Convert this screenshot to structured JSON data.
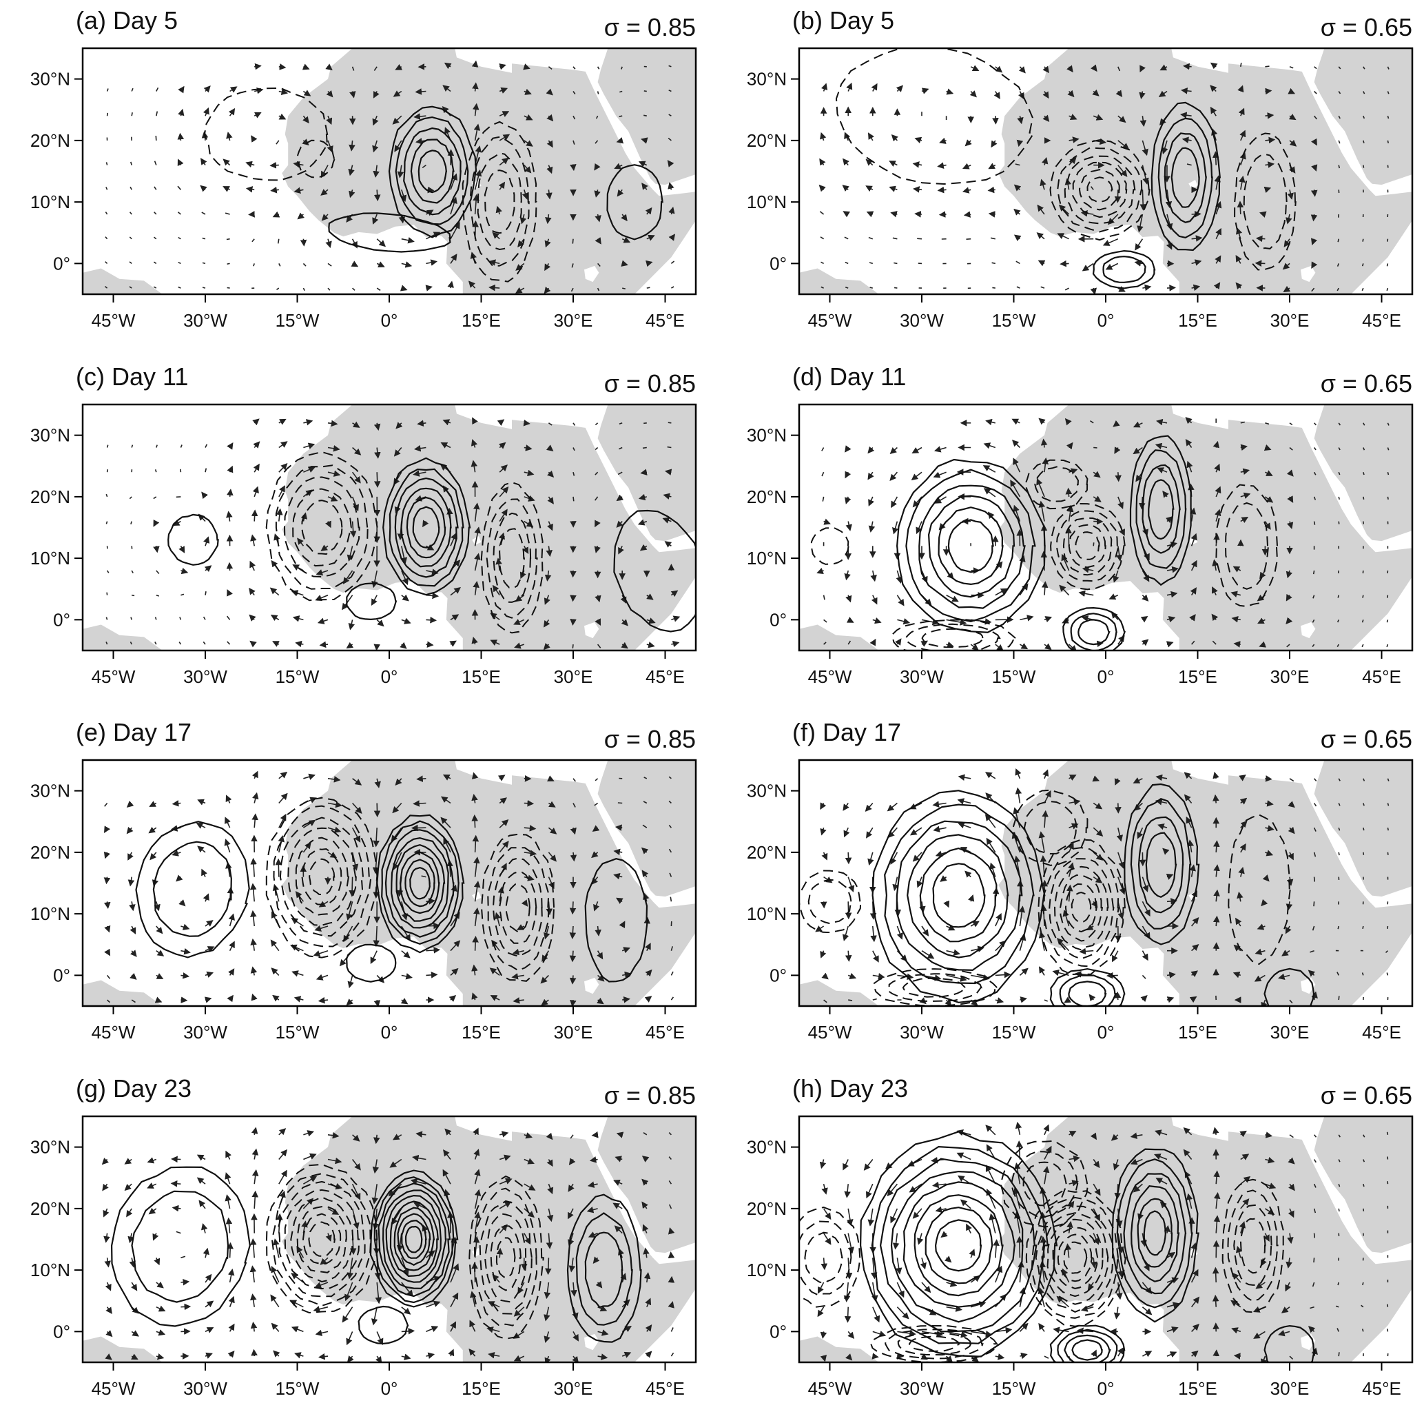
{
  "panels": [
    {
      "id": "a",
      "title": "(a) Day 5",
      "sigma": "σ = 0.85",
      "day": 5,
      "sigma_value": 0.85
    },
    {
      "id": "b",
      "title": "(b) Day 5",
      "sigma": "σ = 0.65",
      "day": 5,
      "sigma_value": 0.65
    },
    {
      "id": "c",
      "title": "(c) Day 11",
      "sigma": "σ = 0.85",
      "day": 11,
      "sigma_value": 0.85
    },
    {
      "id": "d",
      "title": "(d) Day 11",
      "sigma": "σ = 0.65",
      "day": 11,
      "sigma_value": 0.65
    },
    {
      "id": "e",
      "title": "(e) Day 17",
      "sigma": "σ = 0.85",
      "day": 17,
      "sigma_value": 0.85
    },
    {
      "id": "f",
      "title": "(f) Day 17",
      "sigma": "σ = 0.65",
      "day": 17,
      "sigma_value": 0.65
    },
    {
      "id": "g",
      "title": "(g) Day 23",
      "sigma": "σ = 0.85",
      "day": 23,
      "sigma_value": 0.85
    },
    {
      "id": "h",
      "title": "(h) Day 23",
      "sigma": "σ = 0.65",
      "day": 23,
      "sigma_value": 0.65
    }
  ],
  "axes": {
    "lon_range": [
      -50,
      50
    ],
    "lat_range": [
      -5,
      35
    ],
    "lon_ticks": [
      {
        "value": -45,
        "label": "45°W"
      },
      {
        "value": -30,
        "label": "30°W"
      },
      {
        "value": -15,
        "label": "15°W"
      },
      {
        "value": 0,
        "label": "0°"
      },
      {
        "value": 15,
        "label": "15°E"
      },
      {
        "value": 30,
        "label": "30°E"
      },
      {
        "value": 45,
        "label": "45°E"
      }
    ],
    "lat_ticks": [
      {
        "value": 30,
        "label": "30°N"
      },
      {
        "value": 20,
        "label": "20°N"
      },
      {
        "value": 10,
        "label": "10°N"
      },
      {
        "value": 0,
        "label": "0°"
      }
    ]
  },
  "colors": {
    "land": "#d3d3d3",
    "contour": "#111111",
    "vector": "#222222"
  }
}
